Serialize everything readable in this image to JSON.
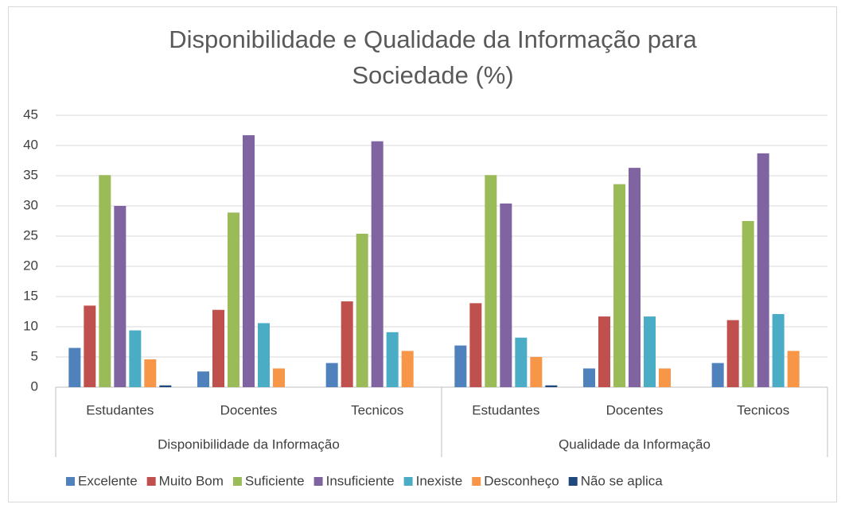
{
  "chart_data": {
    "type": "bar",
    "title": [
      "Disponibilidade e Qualidade da Informação para",
      "Sociedade (%)"
    ],
    "categories": [
      "Estudantes",
      "Docentes",
      "Tecnicos",
      "Estudantes",
      "Docentes",
      "Tecnicos"
    ],
    "category_groups": [
      "Disponibilidade da Informação",
      "Qualidade da Informação"
    ],
    "series": [
      {
        "name": "Excelente",
        "color": "#4f81bd",
        "values": [
          6.5,
          2.6,
          4.0,
          6.9,
          3.1,
          4.0
        ]
      },
      {
        "name": "Muito Bom",
        "color": "#c0504d",
        "values": [
          13.5,
          12.8,
          14.2,
          13.9,
          11.7,
          11.1
        ]
      },
      {
        "name": "Suficiente",
        "color": "#9bbb59",
        "values": [
          35.1,
          28.9,
          25.4,
          35.1,
          33.6,
          27.5
        ]
      },
      {
        "name": "Insuficiente",
        "color": "#8064a2",
        "values": [
          30.0,
          41.7,
          40.7,
          30.4,
          36.3,
          38.7
        ]
      },
      {
        "name": "Inexiste",
        "color": "#4bacc6",
        "values": [
          9.4,
          10.6,
          9.1,
          8.2,
          11.7,
          12.1
        ]
      },
      {
        "name": "Desconheço",
        "color": "#f79646",
        "values": [
          4.6,
          3.1,
          6.0,
          5.0,
          3.1,
          6.0
        ]
      },
      {
        "name": "Não se aplica",
        "color": "#1f497d",
        "values": [
          0.3,
          0,
          0,
          0.3,
          0,
          0
        ]
      }
    ],
    "ylim": [
      0,
      45
    ],
    "yticks": [
      0,
      5,
      10,
      15,
      20,
      25,
      30,
      35,
      40,
      45
    ],
    "grid": true,
    "legend": "bottom"
  }
}
